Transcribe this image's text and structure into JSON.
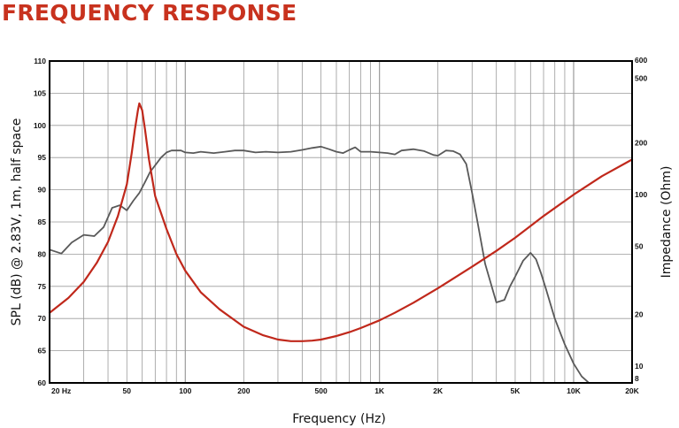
{
  "page_title": "FREQUENCY RESPONSE",
  "colors": {
    "title": "#c8321e",
    "impedance": "#c0281b",
    "spl": "#595959",
    "grid": "#9a9a9a",
    "frame": "#000000"
  },
  "chart_data": {
    "type": "line",
    "title": "FREQUENCY RESPONSE",
    "xlabel": "Frequency (Hz)",
    "ylabel_left": "SPL (dB) @ 2.83V, 1m, half space",
    "ylabel_right": "Impedance (Ohm)",
    "x_scale": "log",
    "xlim": [
      20,
      20000
    ],
    "ylim_left": [
      60,
      110
    ],
    "ylim_right": [
      8,
      600
    ],
    "right_scale": "log",
    "grid": true,
    "x_tick_labels": [
      {
        "v": 20,
        "t": "20  Hz"
      },
      {
        "v": 50,
        "t": "50"
      },
      {
        "v": 100,
        "t": "100"
      },
      {
        "v": 200,
        "t": "200"
      },
      {
        "v": 500,
        "t": "500"
      },
      {
        "v": 1000,
        "t": "1K"
      },
      {
        "v": 2000,
        "t": "2K"
      },
      {
        "v": 5000,
        "t": "5K"
      },
      {
        "v": 10000,
        "t": "10K"
      },
      {
        "v": 20000,
        "t": "20K"
      }
    ],
    "y_left_ticks": [
      60,
      65,
      70,
      75,
      80,
      85,
      90,
      95,
      100,
      105,
      110
    ],
    "y_right_ticks": [
      {
        "v": 8,
        "t": "8"
      },
      {
        "v": 10,
        "t": "10"
      },
      {
        "v": 20,
        "t": "20"
      },
      {
        "v": 50,
        "t": "50"
      },
      {
        "v": 100,
        "t": "100"
      },
      {
        "v": 200,
        "t": "200"
      },
      {
        "v": 500,
        "t": "500"
      },
      {
        "v": 600,
        "t": "600"
      }
    ],
    "series": [
      {
        "axis": "left",
        "x": [
          20,
          23,
          26,
          30,
          34,
          38,
          42,
          46,
          50,
          54,
          58,
          62,
          66,
          70,
          75,
          80,
          85,
          90,
          95,
          100,
          110,
          120,
          140,
          160,
          180,
          200,
          230,
          260,
          300,
          350,
          400,
          450,
          500,
          550,
          600,
          650,
          700,
          750,
          800,
          900,
          1000,
          1100,
          1200,
          1300,
          1500,
          1700,
          1900,
          2000,
          2200,
          2400,
          2600,
          2800,
          3000,
          3200,
          3500,
          4000,
          4400,
          4700,
          5000,
          5500,
          6000,
          6400,
          6800,
          7200,
          8000,
          9000,
          10000,
          11000,
          12000
        ],
        "values": [
          80.7,
          80.1,
          81.8,
          83.0,
          82.8,
          84.2,
          87.2,
          87.6,
          86.8,
          88.3,
          89.5,
          91.2,
          92.8,
          93.8,
          95.0,
          95.8,
          96.1,
          96.1,
          96.1,
          95.8,
          95.7,
          95.9,
          95.7,
          95.9,
          96.1,
          96.1,
          95.8,
          95.9,
          95.8,
          95.9,
          96.2,
          96.5,
          96.7,
          96.3,
          95.9,
          95.7,
          96.2,
          96.6,
          95.9,
          95.9,
          95.8,
          95.7,
          95.5,
          96.1,
          96.3,
          96.0,
          95.4,
          95.3,
          96.1,
          96.0,
          95.5,
          94.0,
          89.5,
          85.0,
          78.5,
          72.5,
          72.9,
          75.0,
          76.5,
          79.0,
          80.2,
          79.2,
          77.0,
          74.6,
          70.0,
          66.0,
          63.0,
          61.0,
          60.0
        ]
      },
      {
        "axis": "right",
        "x": [
          20,
          25,
          30,
          35,
          40,
          45,
          50,
          53,
          55,
          57,
          58,
          60,
          62,
          65,
          70,
          80,
          90,
          100,
          120,
          150,
          200,
          250,
          300,
          350,
          400,
          450,
          500,
          600,
          700,
          800,
          1000,
          1200,
          1500,
          2000,
          3000,
          4000,
          5000,
          7000,
          10000,
          14000,
          20000
        ],
        "values": [
          20.5,
          25.0,
          31.0,
          40.0,
          53.0,
          75.0,
          115.0,
          175.0,
          240.0,
          310.0,
          340.0,
          310.0,
          240.0,
          160.0,
          98.0,
          63.0,
          45.0,
          36.0,
          27.0,
          21.5,
          17.0,
          15.2,
          14.3,
          14.0,
          14.0,
          14.1,
          14.3,
          15.0,
          15.8,
          16.7,
          18.5,
          20.5,
          23.5,
          28.5,
          38.0,
          47.0,
          56.0,
          75.0,
          100.0,
          128.0,
          160.0
        ]
      }
    ]
  }
}
